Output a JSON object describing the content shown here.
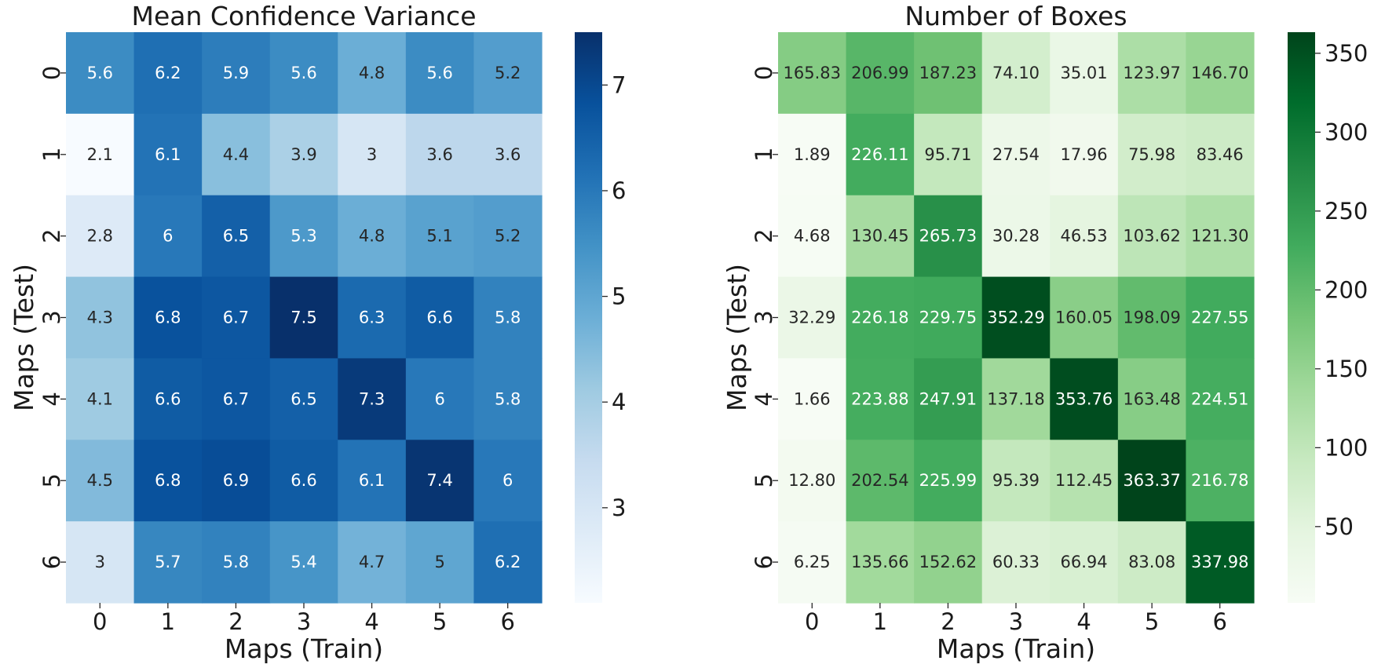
{
  "chart_data": [
    {
      "type": "heatmap",
      "title": "Mean Confidence Variance",
      "xlabel": "Maps (Train)",
      "ylabel": "Maps (Test)",
      "x_categories": [
        "0",
        "1",
        "2",
        "3",
        "4",
        "5",
        "6"
      ],
      "y_categories": [
        "0",
        "1",
        "2",
        "3",
        "4",
        "5",
        "6"
      ],
      "values": [
        [
          5.6,
          6.2,
          5.9,
          5.6,
          4.8,
          5.6,
          5.2
        ],
        [
          2.1,
          6.1,
          4.4,
          3.9,
          3.0,
          3.6,
          3.6
        ],
        [
          2.8,
          6.0,
          6.5,
          5.3,
          4.8,
          5.1,
          5.2
        ],
        [
          4.3,
          6.8,
          6.7,
          7.5,
          6.3,
          6.6,
          5.8
        ],
        [
          4.1,
          6.6,
          6.7,
          6.5,
          7.3,
          6.0,
          5.8
        ],
        [
          4.5,
          6.8,
          6.9,
          6.6,
          6.1,
          7.4,
          6.0
        ],
        [
          3.0,
          5.7,
          5.8,
          5.4,
          4.7,
          5.0,
          6.2
        ]
      ],
      "cell_labels": [
        [
          "5.6",
          "6.2",
          "5.9",
          "5.6",
          "4.8",
          "5.6",
          "5.2"
        ],
        [
          "2.1",
          "6.1",
          "4.4",
          "3.9",
          "3",
          "3.6",
          "3.6"
        ],
        [
          "2.8",
          "6",
          "6.5",
          "5.3",
          "4.8",
          "5.1",
          "5.2"
        ],
        [
          "4.3",
          "6.8",
          "6.7",
          "7.5",
          "6.3",
          "6.6",
          "5.8"
        ],
        [
          "4.1",
          "6.6",
          "6.7",
          "6.5",
          "7.3",
          "6",
          "5.8"
        ],
        [
          "4.5",
          "6.8",
          "6.9",
          "6.6",
          "6.1",
          "7.4",
          "6"
        ],
        [
          "3",
          "5.7",
          "5.8",
          "5.4",
          "4.7",
          "5",
          "6.2"
        ]
      ],
      "colormap": "Blues",
      "vmin": 2.1,
      "vmax": 7.5,
      "colorbar_ticks": [
        "3",
        "4",
        "5",
        "6",
        "7"
      ],
      "colorbar_tick_values": [
        3,
        4,
        5,
        6,
        7
      ]
    },
    {
      "type": "heatmap",
      "title": "Number of Boxes",
      "xlabel": "Maps (Train)",
      "ylabel": "Maps (Test)",
      "x_categories": [
        "0",
        "1",
        "2",
        "3",
        "4",
        "5",
        "6"
      ],
      "y_categories": [
        "0",
        "1",
        "2",
        "3",
        "4",
        "5",
        "6"
      ],
      "values": [
        [
          165.83,
          206.99,
          187.23,
          74.1,
          35.01,
          123.97,
          146.7
        ],
        [
          1.89,
          226.11,
          95.71,
          27.54,
          17.96,
          75.98,
          83.46
        ],
        [
          4.68,
          130.45,
          265.73,
          30.28,
          46.53,
          103.62,
          121.3
        ],
        [
          32.29,
          226.18,
          229.75,
          352.29,
          160.05,
          198.09,
          227.55
        ],
        [
          1.66,
          223.88,
          247.91,
          137.18,
          353.76,
          163.48,
          224.51
        ],
        [
          12.8,
          202.54,
          225.99,
          95.39,
          112.45,
          363.37,
          216.78
        ],
        [
          6.25,
          135.66,
          152.62,
          60.33,
          66.94,
          83.08,
          337.98
        ]
      ],
      "cell_labels": [
        [
          "165.83",
          "206.99",
          "187.23",
          "74.10",
          "35.01",
          "123.97",
          "146.70"
        ],
        [
          "1.89",
          "226.11",
          "95.71",
          "27.54",
          "17.96",
          "75.98",
          "83.46"
        ],
        [
          "4.68",
          "130.45",
          "265.73",
          "30.28",
          "46.53",
          "103.62",
          "121.30"
        ],
        [
          "32.29",
          "226.18",
          "229.75",
          "352.29",
          "160.05",
          "198.09",
          "227.55"
        ],
        [
          "1.66",
          "223.88",
          "247.91",
          "137.18",
          "353.76",
          "163.48",
          "224.51"
        ],
        [
          "12.80",
          "202.54",
          "225.99",
          "95.39",
          "112.45",
          "363.37",
          "216.78"
        ],
        [
          "6.25",
          "135.66",
          "152.62",
          "60.33",
          "66.94",
          "83.08",
          "337.98"
        ]
      ],
      "colormap": "Greens",
      "vmin": 1.66,
      "vmax": 363.37,
      "colorbar_ticks": [
        "50",
        "100",
        "150",
        "200",
        "250",
        "300",
        "350"
      ],
      "colorbar_tick_values": [
        50,
        100,
        150,
        200,
        250,
        300,
        350
      ]
    }
  ]
}
